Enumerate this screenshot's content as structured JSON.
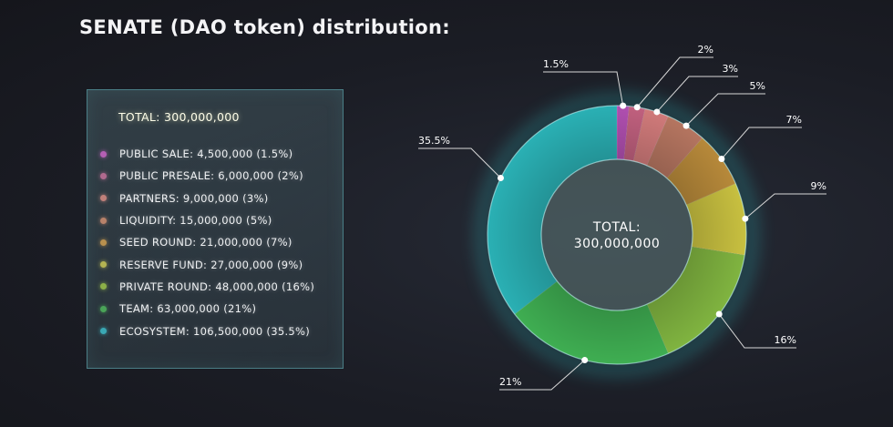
{
  "title": "SENATE (DAO token) distribution:",
  "legend": {
    "total": "TOTAL: 300,000,000",
    "items": [
      {
        "label": "PUBLIC SALE: 4,500,000 (1.5%)",
        "color": "#b45fb4"
      },
      {
        "label": "PUBLIC PRESALE: 6,000,000 (2%)",
        "color": "#b06a8e"
      },
      {
        "label": "PARTNERS: 9,000,000 (3%)",
        "color": "#c0807a"
      },
      {
        "label": "LIQUIDITY: 15,000,000 (5%)",
        "color": "#b8826a"
      },
      {
        "label": "SEED ROUND: 21,000,000 (7%)",
        "color": "#b8904e"
      },
      {
        "label": "RESERVE FUND: 27,000,000 (9%)",
        "color": "#b4b452"
      },
      {
        "label": "PRIVATE ROUND: 48,000,000 (16%)",
        "color": "#8cb048"
      },
      {
        "label": "TEAM: 63,000,000 (21%)",
        "color": "#4aa458"
      },
      {
        "label": "ECOSYSTEM: 106,500,000 (35.5%)",
        "color": "#3aa8b4"
      }
    ]
  },
  "chart_data": {
    "type": "pie",
    "donut": true,
    "center_label_line1": "TOTAL:",
    "center_label_line2": "300,000,000",
    "slices": [
      {
        "name": "PUBLIC SALE",
        "value": 4500000,
        "percent": 1.5,
        "label": "1.5%",
        "color": "#b04fb0"
      },
      {
        "name": "PUBLIC PRESALE",
        "value": 6000000,
        "percent": 2,
        "label": "2%",
        "color": "#c0607e"
      },
      {
        "name": "PARTNERS",
        "value": 9000000,
        "percent": 3,
        "label": "3%",
        "color": "#d07a7a"
      },
      {
        "name": "LIQUIDITY",
        "value": 15000000,
        "percent": 5,
        "label": "5%",
        "color": "#b57560"
      },
      {
        "name": "SEED ROUND",
        "value": 21000000,
        "percent": 7,
        "label": "7%",
        "color": "#b7893a"
      },
      {
        "name": "RESERVE FUND",
        "value": 27000000,
        "percent": 9,
        "label": "9%",
        "color": "#c8c040"
      },
      {
        "name": "PRIVATE ROUND",
        "value": 48000000,
        "percent": 16,
        "label": "16%",
        "color": "#80b440"
      },
      {
        "name": "TEAM",
        "value": 63000000,
        "percent": 21,
        "label": "21%",
        "color": "#3fae52"
      },
      {
        "name": "ECOSYSTEM",
        "value": 106500000,
        "percent": 35.5,
        "label": "35.5%",
        "color": "#2ab0b4"
      }
    ]
  }
}
